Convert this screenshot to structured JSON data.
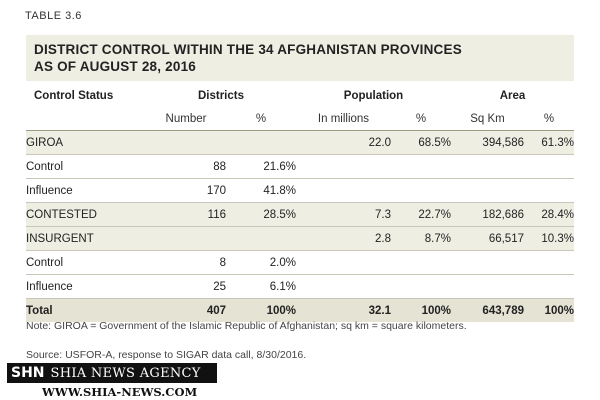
{
  "table_label": "TABLE 3.6",
  "title_line1": "DISTRICT CONTROL WITHIN THE 34 AFGHANISTAN PROVINCES",
  "title_line2": "AS OF AUGUST 28, 2016",
  "header": {
    "control_status": "Control Status",
    "districts": "Districts",
    "population": "Population",
    "area": "Area",
    "sub": [
      "Number",
      "%",
      "In millions",
      "%",
      "Sq Km",
      "%"
    ]
  },
  "rows": [
    {
      "label": "GIROA",
      "num": "",
      "num_pct": "",
      "pop": "22.0",
      "pop_pct": "68.5%",
      "area": "394,586",
      "area_pct": "61.3%"
    },
    {
      "label": "Control",
      "num": "88",
      "num_pct": "21.6%",
      "pop": "",
      "pop_pct": "",
      "area": "",
      "area_pct": ""
    },
    {
      "label": "Influence",
      "num": "170",
      "num_pct": "41.8%",
      "pop": "",
      "pop_pct": "",
      "area": "",
      "area_pct": ""
    },
    {
      "label": "CONTESTED",
      "num": "116",
      "num_pct": "28.5%",
      "pop": "7.3",
      "pop_pct": "22.7%",
      "area": "182,686",
      "area_pct": "28.4%"
    },
    {
      "label": "INSURGENT",
      "num": "",
      "num_pct": "",
      "pop": "2.8",
      "pop_pct": "8.7%",
      "area": "66,517",
      "area_pct": "10.3%"
    },
    {
      "label": "Control",
      "num": "8",
      "num_pct": "2.0%",
      "pop": "",
      "pop_pct": "",
      "area": "",
      "area_pct": ""
    },
    {
      "label": "Influence",
      "num": "25",
      "num_pct": "6.1%",
      "pop": "",
      "pop_pct": "",
      "area": "",
      "area_pct": ""
    }
  ],
  "total": {
    "label": "Total",
    "num": "407",
    "num_pct": "100%",
    "pop": "32.1",
    "pop_pct": "100%",
    "area": "643,789",
    "area_pct": "100%"
  },
  "note": "Note: GIROA = Government of the Islamic Republic of Afghanistan; sq km = square kilometers.",
  "source": "Source: USFOR-A, response to SIGAR data call, 8/30/2016.",
  "watermark": {
    "abbr": "SHN",
    "name": "SHIA NEWS AGENCY",
    "url": "WWW.SHIA-NEWS.COM"
  }
}
